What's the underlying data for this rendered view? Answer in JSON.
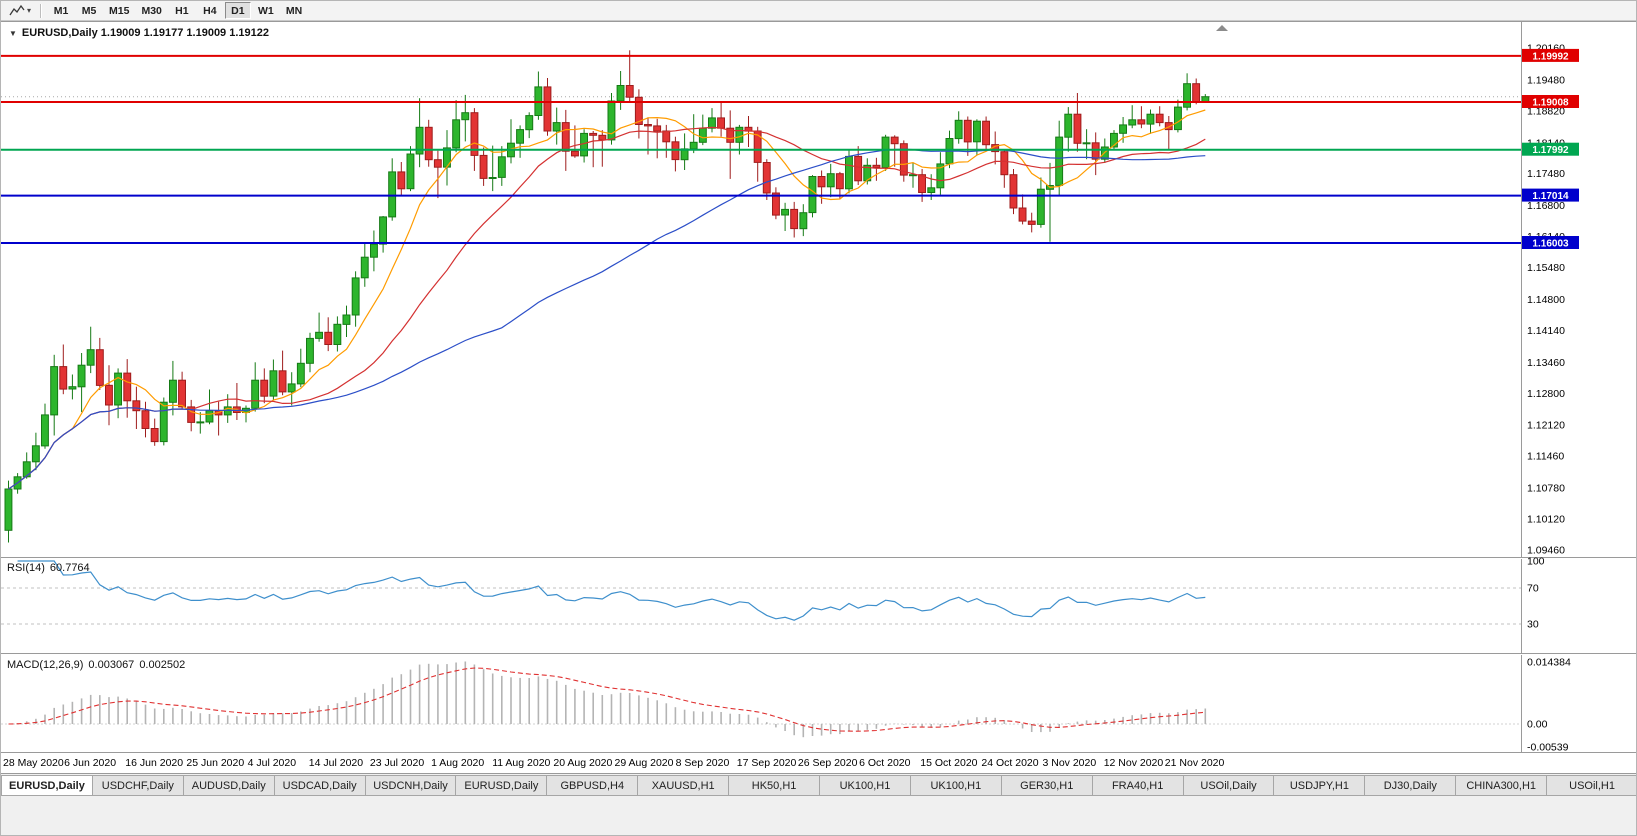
{
  "toolbar": {
    "chart_icon": "zigzag-chart-icon",
    "dropdown_caret": "▾",
    "timeframes": [
      {
        "label": "M1",
        "active": false
      },
      {
        "label": "M5",
        "active": false
      },
      {
        "label": "M15",
        "active": false
      },
      {
        "label": "M30",
        "active": false
      },
      {
        "label": "H1",
        "active": false
      },
      {
        "label": "H4",
        "active": false
      },
      {
        "label": "D1",
        "active": true
      },
      {
        "label": "W1",
        "active": false
      },
      {
        "label": "MN",
        "active": false
      }
    ]
  },
  "chart": {
    "collapse_marker": "▼",
    "title": "EURUSD,Daily 1.19009 1.19177 1.19009 1.19122"
  },
  "colors": {
    "bull": "#2db52d",
    "bull_border": "#157a15",
    "bear": "#e23434",
    "bear_border": "#9e1c1c",
    "resistance": "#e00000",
    "pivot": "#00a651",
    "support": "#0000cc",
    "bid_line": "#a8a8a8",
    "rsi_line": "#3e8fcc",
    "rsi_level": "#c0c0c0",
    "macd_histogram": "#b4b4b4",
    "macd_signal": "#e03131",
    "axis_line": "#9a9a9a"
  },
  "chart_data": {
    "type": "candlestick",
    "symbol": "EURUSD",
    "timeframe": "Daily",
    "ohlc_display": {
      "open": "1.19009",
      "high": "1.19177",
      "low": "1.19009",
      "close": "1.19122"
    },
    "current_bid": 1.19122,
    "y_ticks": [
      "1.20160",
      "1.19480",
      "1.18820",
      "1.18140",
      "1.17480",
      "1.16800",
      "1.16140",
      "1.15480",
      "1.14800",
      "1.14140",
      "1.13460",
      "1.12800",
      "1.12120",
      "1.11460",
      "1.10780",
      "1.10120",
      "1.09460"
    ],
    "x_labels": [
      "28 May 2020",
      "6 Jun 2020",
      "16 Jun 2020",
      "25 Jun 2020",
      "4 Jul 2020",
      "14 Jul 2020",
      "23 Jul 2020",
      "1 Aug 2020",
      "11 Aug 2020",
      "20 Aug 2020",
      "29 Aug 2020",
      "8 Sep 2020",
      "17 Sep 2020",
      "26 Sep 2020",
      "6 Oct 2020",
      "15 Oct 2020",
      "24 Oct 2020",
      "3 Nov 2020",
      "12 Nov 2020",
      "21 Nov 2020"
    ],
    "hlines": [
      {
        "price": 1.19992,
        "label": "1.19992",
        "color": "#e00000",
        "type": "resistance"
      },
      {
        "price": 1.19008,
        "label": "1.19008",
        "color": "#e00000",
        "type": "resistance"
      },
      {
        "price": 1.17992,
        "label": "1.17992",
        "color": "#00a651",
        "type": "pivot"
      },
      {
        "price": 1.17014,
        "label": "1.17014",
        "color": "#0000cc",
        "type": "support"
      },
      {
        "price": 1.16003,
        "label": "1.16003",
        "color": "#0000cc",
        "type": "support"
      }
    ],
    "moving_averages": [
      {
        "period": 8,
        "color": "#ff9c00"
      },
      {
        "period": 21,
        "color": "#d43131"
      },
      {
        "period": 55,
        "color": "#2c4fc8"
      }
    ],
    "rsi": {
      "label": "RSI(14)",
      "value": "60.7764",
      "period": 14,
      "levels": [
        100,
        70,
        30
      ],
      "color": "#3e8fcc"
    },
    "macd": {
      "label": "MACD(12,26,9)",
      "values": [
        "0.003067",
        "0.002502"
      ],
      "y_ticks": [
        "0.014384",
        "0.00",
        "-0.00539"
      ]
    },
    "candles": [
      [
        1.0988,
        1.1094,
        1.0962,
        1.1076
      ],
      [
        1.1076,
        1.111,
        1.1066,
        1.1102
      ],
      [
        1.1102,
        1.1154,
        1.1098,
        1.1134
      ],
      [
        1.1134,
        1.1196,
        1.1116,
        1.1168
      ],
      [
        1.1168,
        1.1258,
        1.1162,
        1.1234
      ],
      [
        1.1234,
        1.1362,
        1.119,
        1.1337
      ],
      [
        1.1337,
        1.1384,
        1.1278,
        1.1289
      ],
      [
        1.1289,
        1.132,
        1.1267,
        1.1294
      ],
      [
        1.1294,
        1.1366,
        1.124,
        1.134
      ],
      [
        1.134,
        1.1422,
        1.1323,
        1.1373
      ],
      [
        1.1373,
        1.1398,
        1.1287,
        1.1297
      ],
      [
        1.1297,
        1.134,
        1.1212,
        1.1255
      ],
      [
        1.1255,
        1.1333,
        1.1227,
        1.1323
      ],
      [
        1.1323,
        1.1353,
        1.1228,
        1.1264
      ],
      [
        1.1264,
        1.1294,
        1.1204,
        1.1243
      ],
      [
        1.1243,
        1.1262,
        1.1186,
        1.1205
      ],
      [
        1.1205,
        1.1226,
        1.1168,
        1.1177
      ],
      [
        1.1177,
        1.1271,
        1.1169,
        1.1261
      ],
      [
        1.1261,
        1.1349,
        1.1233,
        1.1308
      ],
      [
        1.1308,
        1.1326,
        1.1247,
        1.1251
      ],
      [
        1.1251,
        1.1266,
        1.1199,
        1.1218
      ],
      [
        1.1218,
        1.124,
        1.1194,
        1.1219
      ],
      [
        1.1219,
        1.1288,
        1.1214,
        1.1243
      ],
      [
        1.1243,
        1.1262,
        1.119,
        1.1234
      ],
      [
        1.1234,
        1.1278,
        1.1217,
        1.1251
      ],
      [
        1.1251,
        1.1302,
        1.1223,
        1.1239
      ],
      [
        1.1239,
        1.1254,
        1.1218,
        1.1248
      ],
      [
        1.1248,
        1.1346,
        1.1241,
        1.1308
      ],
      [
        1.1308,
        1.1333,
        1.1259,
        1.1274
      ],
      [
        1.1274,
        1.1352,
        1.1266,
        1.1328
      ],
      [
        1.1328,
        1.1371,
        1.1276,
        1.1283
      ],
      [
        1.1283,
        1.1325,
        1.1254,
        1.13
      ],
      [
        1.13,
        1.1375,
        1.1293,
        1.1344
      ],
      [
        1.1344,
        1.1409,
        1.1325,
        1.1397
      ],
      [
        1.1397,
        1.1452,
        1.139,
        1.141
      ],
      [
        1.141,
        1.1442,
        1.137,
        1.1384
      ],
      [
        1.1384,
        1.1444,
        1.1369,
        1.1427
      ],
      [
        1.1427,
        1.1467,
        1.14,
        1.1447
      ],
      [
        1.1447,
        1.154,
        1.1422,
        1.1526
      ],
      [
        1.1526,
        1.1601,
        1.1507,
        1.157
      ],
      [
        1.157,
        1.1627,
        1.154,
        1.1598
      ],
      [
        1.1598,
        1.1658,
        1.158,
        1.1656
      ],
      [
        1.1656,
        1.1781,
        1.1648,
        1.1752
      ],
      [
        1.1752,
        1.1773,
        1.17,
        1.1716
      ],
      [
        1.1716,
        1.1807,
        1.1711,
        1.179
      ],
      [
        1.179,
        1.1909,
        1.1762,
        1.1847
      ],
      [
        1.1847,
        1.1863,
        1.1763,
        1.1778
      ],
      [
        1.1778,
        1.1797,
        1.1696,
        1.1762
      ],
      [
        1.1762,
        1.1841,
        1.1723,
        1.1803
      ],
      [
        1.1803,
        1.1905,
        1.1794,
        1.1863
      ],
      [
        1.1863,
        1.1916,
        1.1817,
        1.1878
      ],
      [
        1.1878,
        1.1888,
        1.1754,
        1.1787
      ],
      [
        1.1787,
        1.1804,
        1.1722,
        1.1738
      ],
      [
        1.1738,
        1.1808,
        1.1711,
        1.174
      ],
      [
        1.174,
        1.1807,
        1.1722,
        1.1784
      ],
      [
        1.1784,
        1.1864,
        1.177,
        1.1813
      ],
      [
        1.1813,
        1.1851,
        1.1782,
        1.1842
      ],
      [
        1.1842,
        1.1879,
        1.1824,
        1.1872
      ],
      [
        1.1872,
        1.1966,
        1.1863,
        1.1933
      ],
      [
        1.1933,
        1.1952,
        1.1829,
        1.1839
      ],
      [
        1.1839,
        1.1889,
        1.181,
        1.1857
      ],
      [
        1.1857,
        1.1884,
        1.1754,
        1.1796
      ],
      [
        1.1796,
        1.1851,
        1.1782,
        1.1786
      ],
      [
        1.1786,
        1.1843,
        1.1772,
        1.1834
      ],
      [
        1.1834,
        1.1839,
        1.1762,
        1.183
      ],
      [
        1.183,
        1.1841,
        1.1763,
        1.182
      ],
      [
        1.182,
        1.192,
        1.181,
        1.1903
      ],
      [
        1.1903,
        1.1967,
        1.1884,
        1.1936
      ],
      [
        1.1936,
        1.2011,
        1.1899,
        1.1911
      ],
      [
        1.1911,
        1.1928,
        1.1823,
        1.1853
      ],
      [
        1.1853,
        1.1868,
        1.1789,
        1.185
      ],
      [
        1.185,
        1.1865,
        1.1781,
        1.1839
      ],
      [
        1.1839,
        1.1852,
        1.1782,
        1.1816
      ],
      [
        1.1816,
        1.1827,
        1.1753,
        1.1778
      ],
      [
        1.1778,
        1.1834,
        1.1756,
        1.1801
      ],
      [
        1.1801,
        1.1875,
        1.1792,
        1.1815
      ],
      [
        1.1815,
        1.1874,
        1.1809,
        1.1845
      ],
      [
        1.1845,
        1.1888,
        1.1836,
        1.1867
      ],
      [
        1.1867,
        1.19,
        1.1827,
        1.1845
      ],
      [
        1.1845,
        1.1883,
        1.1737,
        1.1815
      ],
      [
        1.1815,
        1.1852,
        1.1789,
        1.1847
      ],
      [
        1.1847,
        1.1871,
        1.1805,
        1.1839
      ],
      [
        1.1839,
        1.1848,
        1.1731,
        1.1772
      ],
      [
        1.1772,
        1.1779,
        1.1692,
        1.1707
      ],
      [
        1.1707,
        1.1719,
        1.1651,
        1.166
      ],
      [
        1.166,
        1.1686,
        1.1626,
        1.1672
      ],
      [
        1.1672,
        1.1688,
        1.1612,
        1.1631
      ],
      [
        1.1631,
        1.1683,
        1.1615,
        1.1665
      ],
      [
        1.1665,
        1.1745,
        1.1655,
        1.1742
      ],
      [
        1.1742,
        1.1755,
        1.1684,
        1.172
      ],
      [
        1.172,
        1.1769,
        1.1698,
        1.1748
      ],
      [
        1.1748,
        1.1752,
        1.1695,
        1.1716
      ],
      [
        1.1716,
        1.1798,
        1.1706,
        1.1785
      ],
      [
        1.1785,
        1.1807,
        1.1724,
        1.1733
      ],
      [
        1.1733,
        1.1781,
        1.1725,
        1.1766
      ],
      [
        1.1766,
        1.1782,
        1.1733,
        1.1761
      ],
      [
        1.1761,
        1.1831,
        1.1754,
        1.1826
      ],
      [
        1.1826,
        1.183,
        1.1763,
        1.1812
      ],
      [
        1.1812,
        1.1819,
        1.1731,
        1.1745
      ],
      [
        1.1745,
        1.1771,
        1.1718,
        1.1746
      ],
      [
        1.1746,
        1.1758,
        1.1688,
        1.1708
      ],
      [
        1.1708,
        1.1747,
        1.1692,
        1.1718
      ],
      [
        1.1718,
        1.1794,
        1.1703,
        1.1769
      ],
      [
        1.1769,
        1.184,
        1.176,
        1.1823
      ],
      [
        1.1823,
        1.1881,
        1.1812,
        1.1862
      ],
      [
        1.1862,
        1.187,
        1.1786,
        1.1816
      ],
      [
        1.1816,
        1.1864,
        1.1787,
        1.186
      ],
      [
        1.186,
        1.187,
        1.18,
        1.181
      ],
      [
        1.181,
        1.1838,
        1.1768,
        1.1795
      ],
      [
        1.1795,
        1.18,
        1.1718,
        1.1746
      ],
      [
        1.1746,
        1.1758,
        1.1662,
        1.1675
      ],
      [
        1.1675,
        1.1704,
        1.164,
        1.1647
      ],
      [
        1.1647,
        1.1665,
        1.1623,
        1.164
      ],
      [
        1.164,
        1.174,
        1.1633,
        1.1715
      ],
      [
        1.1715,
        1.1771,
        1.1603,
        1.1723
      ],
      [
        1.1723,
        1.1861,
        1.1702,
        1.1826
      ],
      [
        1.1826,
        1.189,
        1.1795,
        1.1875
      ],
      [
        1.1875,
        1.192,
        1.1795,
        1.1813
      ],
      [
        1.1813,
        1.1843,
        1.1779,
        1.1814
      ],
      [
        1.1814,
        1.1836,
        1.1745,
        1.1779
      ],
      [
        1.1779,
        1.1823,
        1.1771,
        1.1805
      ],
      [
        1.1805,
        1.1841,
        1.1799,
        1.1834
      ],
      [
        1.1834,
        1.1869,
        1.1814,
        1.1852
      ],
      [
        1.1852,
        1.1894,
        1.1845,
        1.1863
      ],
      [
        1.1863,
        1.1892,
        1.1845,
        1.1854
      ],
      [
        1.1854,
        1.1885,
        1.1833,
        1.1875
      ],
      [
        1.1875,
        1.1892,
        1.1849,
        1.1857
      ],
      [
        1.1857,
        1.1871,
        1.18,
        1.1842
      ],
      [
        1.1842,
        1.1906,
        1.1836,
        1.189
      ],
      [
        1.189,
        1.1962,
        1.1883,
        1.194
      ],
      [
        1.194,
        1.1951,
        1.1896,
        1.1901
      ],
      [
        1.19009,
        1.19177,
        1.19009,
        1.19122
      ]
    ]
  },
  "tabs": [
    {
      "label": "EURUSD,Daily",
      "active": true
    },
    {
      "label": "USDCHF,Daily",
      "active": false
    },
    {
      "label": "AUDUSD,Daily",
      "active": false
    },
    {
      "label": "USDCAD,Daily",
      "active": false
    },
    {
      "label": "USDCNH,Daily",
      "active": false
    },
    {
      "label": "EURUSD,Daily",
      "active": false
    },
    {
      "label": "GBPUSD,H4",
      "active": false
    },
    {
      "label": "XAUUSD,H1",
      "active": false
    },
    {
      "label": "HK50,H1",
      "active": false
    },
    {
      "label": "UK100,H1",
      "active": false
    },
    {
      "label": "UK100,H1",
      "active": false
    },
    {
      "label": "GER30,H1",
      "active": false
    },
    {
      "label": "FRA40,H1",
      "active": false
    },
    {
      "label": "USOil,Daily",
      "active": false
    },
    {
      "label": "USDJPY,H1",
      "active": false
    },
    {
      "label": "DJ30,Daily",
      "active": false
    },
    {
      "label": "CHINA300,H1",
      "active": false
    },
    {
      "label": "USOil,H1",
      "active": false
    }
  ]
}
